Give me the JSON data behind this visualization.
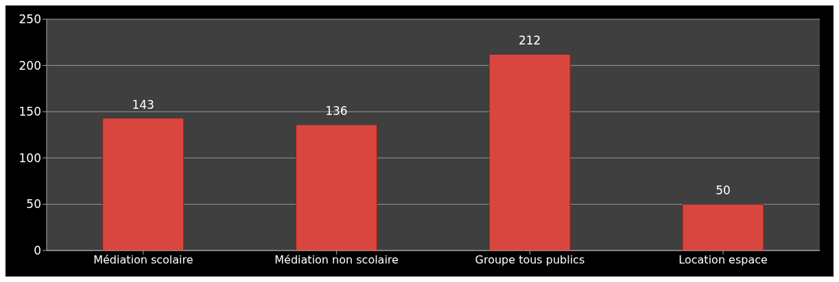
{
  "chart_data": {
    "type": "bar",
    "categories": [
      "Médiation scolaire",
      "Médiation non scolaire",
      "Groupe tous publics",
      "Location espace"
    ],
    "values": [
      143,
      136,
      212,
      50
    ],
    "color": "#d9463f",
    "ylim": [
      0,
      250
    ],
    "yticks": [
      0,
      50,
      100,
      150,
      200,
      250
    ],
    "grid": "y",
    "data_labels": true
  }
}
